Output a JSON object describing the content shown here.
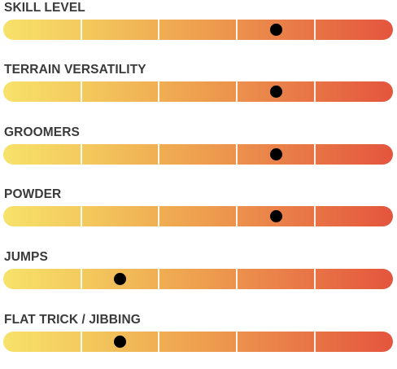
{
  "ratings": [
    {
      "label": "SKILL LEVEL",
      "level": 0.7
    },
    {
      "label": "TERRAIN VERSATILITY",
      "level": 0.7
    },
    {
      "label": "GROOMERS",
      "level": 0.7
    },
    {
      "label": "POWDER",
      "level": 0.7
    },
    {
      "label": "JUMPS",
      "level": 0.3
    },
    {
      "label": "FLAT TRICK / JIBBING",
      "level": 0.3
    }
  ],
  "scale_segments": 5,
  "colors": {
    "gradient_start": "#f7e26a",
    "gradient_end": "#e4553e",
    "marker": "#000000",
    "label": "#3a3a3a"
  }
}
